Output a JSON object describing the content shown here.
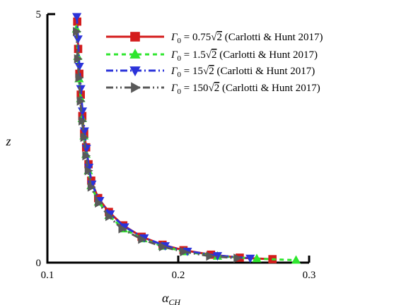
{
  "chart_data": {
    "type": "line",
    "xlabel": "α",
    "xlabel_sub": "CH",
    "ylabel": "z",
    "xlim": [
      0.1,
      0.3
    ],
    "ylim": [
      0,
      5
    ],
    "xticks": [
      0.1,
      0.2,
      0.3
    ],
    "xtick_labels": [
      "0.1",
      "0.2",
      "0.3"
    ],
    "yticks": [
      0,
      5
    ],
    "ytick_labels": [
      "0",
      "5"
    ],
    "grid": false,
    "legend_position": "top-right",
    "series": [
      {
        "name": "Γ0 = 0.75√2 (Carlotti & Hunt 2017)",
        "legend": {
          "gamma": "Γ",
          "sub": "0",
          "eq": " = ",
          "coef": "0.75",
          "radical": "√",
          "radicand": "2",
          "cite": " (Carlotti & Hunt 2017)"
        },
        "color": "#d41c1c",
        "marker_color": "#d41c1c",
        "marker": "square",
        "dash": "solid",
        "x": [
          0.1228,
          0.1235,
          0.1244,
          0.1255,
          0.1267,
          0.1281,
          0.1296,
          0.1314,
          0.1335,
          0.1388,
          0.147,
          0.158,
          0.172,
          0.188,
          0.204,
          0.225,
          0.247,
          0.272
        ],
        "y": [
          4.85,
          4.3,
          3.8,
          3.38,
          2.95,
          2.6,
          2.32,
          1.98,
          1.65,
          1.3,
          1.02,
          0.75,
          0.52,
          0.36,
          0.25,
          0.16,
          0.1,
          0.07
        ]
      },
      {
        "name": "Γ0 = 1.5√2 (Carlotti & Hunt 2017)",
        "legend": {
          "gamma": "Γ",
          "sub": "0",
          "eq": " = ",
          "coef": "1.5",
          "radical": "√",
          "radicand": "2",
          "cite": " (Carlotti & Hunt 2017)"
        },
        "color": "#2ee62e",
        "marker_color": "#2ee62e",
        "marker": "triangle-up",
        "dash": "6,5",
        "x": [
          0.1222,
          0.1232,
          0.1242,
          0.1254,
          0.1266,
          0.128,
          0.1295,
          0.1313,
          0.1334,
          0.139,
          0.147,
          0.158,
          0.173,
          0.188,
          0.205,
          0.23,
          0.26,
          0.29
        ],
        "y": [
          4.7,
          4.15,
          3.7,
          3.3,
          2.9,
          2.55,
          2.18,
          1.85,
          1.55,
          1.22,
          0.95,
          0.68,
          0.48,
          0.33,
          0.22,
          0.13,
          0.08,
          0.05
        ]
      },
      {
        "name": "Γ0 = 15√2 (Carlotti & Hunt 2017)",
        "legend": {
          "gamma": "Γ",
          "sub": "0",
          "eq": " = ",
          "coef": "15",
          "radical": "√",
          "radicand": "2",
          "cite": " (Carlotti & Hunt 2017)"
        },
        "color": "#2b33d9",
        "marker_color": "#2b33d9",
        "marker": "triangle-down",
        "dash": "10,4,2,4",
        "x": [
          0.1225,
          0.1234,
          0.1244,
          0.1255,
          0.1268,
          0.1283,
          0.1298,
          0.1317,
          0.134,
          0.14,
          0.148,
          0.159,
          0.174,
          0.19,
          0.207,
          0.23,
          0.255
        ],
        "y": [
          4.95,
          4.5,
          3.95,
          3.5,
          3.05,
          2.65,
          2.3,
          1.92,
          1.58,
          1.25,
          0.98,
          0.72,
          0.5,
          0.34,
          0.23,
          0.14,
          0.09
        ]
      },
      {
        "name": "Γ0 = 150√2 (Carlotti & Hunt 2017)",
        "legend": {
          "gamma": "Γ",
          "sub": "0",
          "eq": " = ",
          "coef": "150",
          "radical": "√",
          "radicand": "2",
          "cite": " (Carlotti & Hunt 2017)"
        },
        "color": "#595959",
        "marker_color": "#595959",
        "marker": "triangle-right",
        "dash": "10,4,2,4,2,4",
        "x": [
          0.1222,
          0.1231,
          0.1241,
          0.1252,
          0.1265,
          0.1279,
          0.1294,
          0.1312,
          0.1334,
          0.139,
          0.147,
          0.157,
          0.172,
          0.188,
          0.204,
          0.224,
          0.245
        ],
        "y": [
          4.65,
          4.1,
          3.72,
          3.25,
          2.85,
          2.52,
          2.15,
          1.85,
          1.52,
          1.2,
          0.93,
          0.68,
          0.47,
          0.32,
          0.22,
          0.13,
          0.09
        ]
      }
    ]
  }
}
